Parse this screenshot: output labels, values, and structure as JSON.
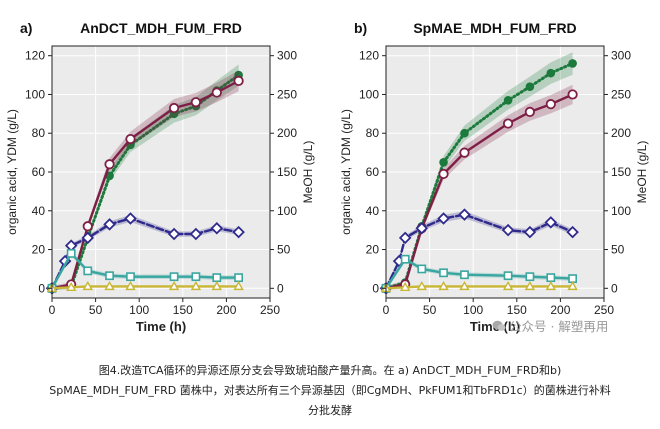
{
  "chart_data": [
    {
      "type": "line",
      "panel_label": "a)",
      "title": "AnDCT_MDH_FUM_FRD",
      "xlabel": "Time (h)",
      "ylabel": "organic acid, YDM (g/L)",
      "y2label": "MeOH (g/L)",
      "xlim": [
        0,
        250
      ],
      "ylim": [
        -5,
        125
      ],
      "y2lim": [
        -12.5,
        312.5
      ],
      "xticks": [
        "0",
        "50",
        "100",
        "150",
        "200",
        "250"
      ],
      "yticks": [
        "0",
        "20",
        "40",
        "60",
        "80",
        "100",
        "120"
      ],
      "y2ticks": [
        "0",
        "50",
        "100",
        "150",
        "200",
        "250",
        "300"
      ],
      "grid": true,
      "series": [
        {
          "name": "green dotted",
          "axis": "left",
          "color": "#1b7a3c",
          "marker": "filled-circle",
          "dash": "dotted",
          "band": true,
          "x": [
            0,
            22,
            41,
            66,
            90,
            140,
            165,
            189,
            214
          ],
          "y": [
            0,
            1,
            26,
            58,
            74,
            90,
            94,
            102,
            110
          ]
        },
        {
          "name": "maroon",
          "axis": "left",
          "color": "#7e1f45",
          "marker": "open-circle",
          "dash": "solid",
          "band": true,
          "x": [
            0,
            22,
            41,
            66,
            90,
            140,
            165,
            189,
            214
          ],
          "y": [
            0,
            2,
            32,
            64,
            77,
            93,
            96,
            101,
            107
          ]
        },
        {
          "name": "navy diamonds",
          "axis": "left",
          "color": "#2f2a8c",
          "marker": "open-diamond",
          "dash": "dashed",
          "band": true,
          "x": [
            0,
            15,
            22,
            41,
            66,
            90,
            140,
            165,
            189,
            214
          ],
          "y": [
            0,
            14,
            22,
            26,
            33,
            36,
            28,
            28,
            31,
            29
          ]
        },
        {
          "name": "teal squares",
          "axis": "left",
          "color": "#3aa6a0",
          "marker": "open-square",
          "dash": "solid",
          "band": true,
          "x": [
            0,
            22,
            41,
            66,
            90,
            140,
            165,
            189,
            214
          ],
          "y": [
            0,
            18,
            9,
            6.5,
            6,
            6,
            6,
            5.5,
            5.5
          ]
        },
        {
          "name": "yellow triangles",
          "axis": "left",
          "color": "#c9b635",
          "marker": "open-triangle",
          "dash": "solid",
          "band": false,
          "x": [
            0,
            22,
            41,
            66,
            90,
            140,
            165,
            189,
            214
          ],
          "y": [
            0,
            0.5,
            1,
            1,
            1,
            1,
            1,
            1,
            1
          ]
        }
      ]
    },
    {
      "type": "line",
      "panel_label": "b)",
      "title": "SpMAE_MDH_FUM_FRD",
      "xlabel": "Time (h)",
      "ylabel": "organic acid, YDM (g/L)",
      "y2label": "MeOH (g/L)",
      "xlim": [
        0,
        250
      ],
      "ylim": [
        -5,
        125
      ],
      "y2lim": [
        -12.5,
        312.5
      ],
      "xticks": [
        "0",
        "50",
        "100",
        "150",
        "200",
        "250"
      ],
      "yticks": [
        "0",
        "20",
        "40",
        "60",
        "80",
        "100",
        "120"
      ],
      "y2ticks": [
        "0",
        "50",
        "100",
        "150",
        "200",
        "250",
        "300"
      ],
      "grid": true,
      "series": [
        {
          "name": "green dotted",
          "axis": "left",
          "color": "#1b7a3c",
          "marker": "filled-circle",
          "dash": "dotted",
          "band": true,
          "x": [
            0,
            22,
            41,
            66,
            90,
            140,
            165,
            189,
            214
          ],
          "y": [
            0,
            3,
            32,
            65,
            80,
            97,
            104,
            111,
            116
          ]
        },
        {
          "name": "maroon",
          "axis": "left",
          "color": "#7e1f45",
          "marker": "open-circle",
          "dash": "solid",
          "band": true,
          "x": [
            0,
            22,
            41,
            66,
            90,
            140,
            165,
            189,
            214
          ],
          "y": [
            0,
            2,
            31,
            59,
            70,
            85,
            91,
            95,
            100
          ]
        },
        {
          "name": "navy diamonds",
          "axis": "left",
          "color": "#2f2a8c",
          "marker": "open-diamond",
          "dash": "dashed",
          "band": true,
          "x": [
            0,
            15,
            22,
            41,
            66,
            90,
            140,
            165,
            189,
            214
          ],
          "y": [
            0,
            14,
            26,
            31,
            36,
            38,
            30,
            29,
            34,
            29
          ]
        },
        {
          "name": "teal squares",
          "axis": "left",
          "color": "#3aa6a0",
          "marker": "open-square",
          "dash": "solid",
          "band": true,
          "x": [
            0,
            22,
            41,
            66,
            90,
            140,
            165,
            189,
            214
          ],
          "y": [
            0,
            15,
            10,
            8,
            7,
            6.5,
            6,
            5.5,
            5
          ]
        },
        {
          "name": "yellow triangles",
          "axis": "left",
          "color": "#c9b635",
          "marker": "open-triangle",
          "dash": "solid",
          "band": false,
          "x": [
            0,
            22,
            41,
            66,
            90,
            140,
            165,
            189,
            214
          ],
          "y": [
            0,
            0.5,
            1,
            1,
            1,
            1,
            1,
            1,
            1
          ]
        }
      ]
    }
  ],
  "watermark": "公众号 · 解塑再用",
  "caption": {
    "line1": "图4.改造TCA循环的异源还原分支会导致琥珀酸产量升高。在 a) AnDCT_MDH_FUM_FRD和b)",
    "line2": "SpMAE_MDH_FUM_FRD 菌株中，对表达所有三个异源基因（即CgMDH、PkFUM1和TbFRD1c）的菌株进行补料",
    "line3": "分批发酵"
  }
}
